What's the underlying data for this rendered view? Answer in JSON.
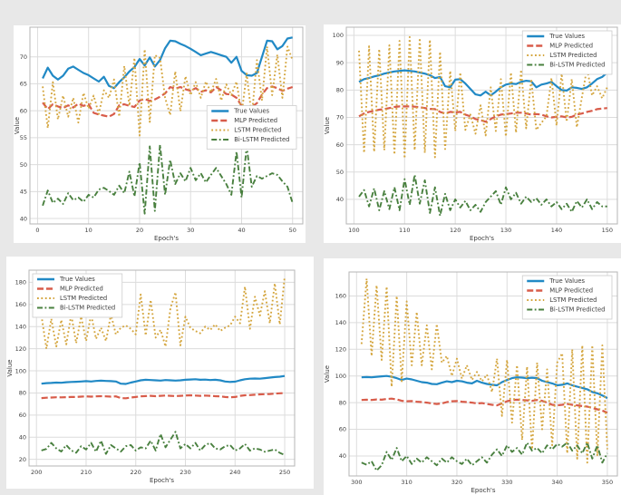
{
  "figure": {
    "background": "#e8e8e8",
    "description": "Comparison of true values and MLP, LSTM, Bi-LSTM predictions over four epoch windows"
  },
  "palette": {
    "true_values": "#2189c5",
    "mlp": "#d85c4a",
    "lstm": "#d4a53d",
    "bilstm": "#49803f",
    "grid": "#dcdcdc",
    "spine": "#b5b5b5",
    "tick_text": "#3c3c3c",
    "legend_bg": "#ffffff",
    "legend_border": "#cccccc",
    "plot_bg": "#ffffff"
  },
  "chart_data": [
    {
      "type": "line",
      "xlabel": "Epoch's",
      "ylabel": "Value",
      "grid": true,
      "legend_position": "center-right",
      "x_start": 1,
      "x_step": 1,
      "xlim": [
        -1.5,
        52
      ],
      "ylim": [
        39,
        75.5
      ],
      "xticks": [
        0,
        10,
        20,
        30,
        40,
        50
      ],
      "yticks": [
        40,
        45,
        50,
        55,
        60,
        65,
        70
      ],
      "series": [
        {
          "name": "True Values",
          "color_key": "true_values",
          "style": "solid",
          "values": [
            66,
            68,
            66.5,
            65.8,
            66.5,
            67.8,
            68.2,
            67.6,
            67,
            66.6,
            66,
            65.4,
            66.3,
            64.6,
            64.2,
            65.3,
            66.2,
            67.3,
            68.1,
            69.6,
            68.4,
            69.9,
            68.2,
            69.4,
            71.6,
            73,
            72.9,
            72.4,
            72,
            71.5,
            70.9,
            70.3,
            70.6,
            70.9,
            70.6,
            70.3,
            70,
            68.9,
            70,
            67.4,
            66.6,
            66.5,
            67,
            70,
            73,
            72.9,
            71.4,
            72,
            73.4,
            73.6
          ]
        },
        {
          "name": "MLP Predicted",
          "color_key": "mlp",
          "style": "dashed",
          "values": [
            61.5,
            60.3,
            61.2,
            60.8,
            60.5,
            61,
            60.6,
            61.3,
            60.9,
            61.2,
            59.6,
            59.3,
            59.1,
            58.9,
            59.4,
            61,
            61.2,
            60.9,
            60.7,
            61.9,
            62.2,
            61.8,
            62.1,
            62.6,
            63.2,
            64.4,
            64.1,
            64.4,
            64,
            63.7,
            64.2,
            63.5,
            63.8,
            63.4,
            64.4,
            63.8,
            63.1,
            63,
            62.4,
            60.9,
            60.4,
            60.7,
            61.4,
            63,
            64.2,
            64.5,
            64.2,
            63.7,
            64.1,
            64.4
          ]
        },
        {
          "name": "LSTM Predicted",
          "color_key": "lstm",
          "style": "dotted",
          "values": [
            64.5,
            56.8,
            65.3,
            58.4,
            62.8,
            58.9,
            62.4,
            57.8,
            63.3,
            60.4,
            62.8,
            59.4,
            63.8,
            62.4,
            65.8,
            58.9,
            68.3,
            60.9,
            69.8,
            55.4,
            71.4,
            57.9,
            70.3,
            69.8,
            62.4,
            59.2,
            67.3,
            59.9,
            66.4,
            62.9,
            65.3,
            62.4,
            65.4,
            63.4,
            65.9,
            61.9,
            64.9,
            62.9,
            65.4,
            59.4,
            66.9,
            58.9,
            69.4,
            61.9,
            71.9,
            62.9,
            70.4,
            62.4,
            71.9,
            69.4
          ]
        },
        {
          "name": "Bi-LSTM Predicted",
          "color_key": "bilstm",
          "style": "dashdot",
          "values": [
            42.4,
            45.2,
            42.9,
            43.7,
            42.7,
            44.7,
            43.4,
            43.9,
            43.1,
            44.4,
            43.9,
            45.4,
            45.7,
            45.1,
            44.4,
            46.1,
            44.7,
            48.7,
            44.1,
            50.4,
            40.9,
            53.4,
            41.4,
            53.7,
            44.4,
            50.9,
            46.4,
            48.4,
            46.9,
            49.4,
            47.1,
            48.4,
            46.7,
            48.1,
            49.4,
            47.9,
            46.4,
            44.4,
            52.4,
            43.9,
            53.4,
            45.9,
            47.9,
            47.4,
            47.9,
            48.4,
            48.1,
            46.9,
            45.9,
            42.9
          ]
        }
      ]
    },
    {
      "type": "line",
      "xlabel": "Epoch's",
      "ylabel": "Value",
      "grid": true,
      "legend_position": "top-right",
      "x_start": 101,
      "x_step": 1,
      "xlim": [
        98.5,
        152
      ],
      "ylim": [
        31,
        103
      ],
      "xticks": [
        100,
        110,
        120,
        130,
        140,
        150
      ],
      "yticks": [
        40,
        50,
        60,
        70,
        80,
        90,
        100
      ],
      "series": [
        {
          "name": "True Values",
          "color_key": "true_values",
          "style": "solid",
          "values": [
            83,
            84,
            84.4,
            85,
            85.4,
            86,
            86.4,
            86.8,
            87,
            87.2,
            87,
            86.8,
            86.4,
            86,
            85.4,
            84.4,
            84.8,
            81.4,
            81,
            83.8,
            84,
            82.4,
            80.4,
            78.4,
            78,
            79.4,
            78,
            79.4,
            81,
            82,
            82.4,
            82.2,
            83,
            83.4,
            83.2,
            81,
            82,
            82.4,
            83,
            81.4,
            80,
            79.8,
            81,
            80.8,
            80.4,
            81,
            82.4,
            84,
            84.8,
            86.4
          ]
        },
        {
          "name": "MLP Predicted",
          "color_key": "mlp",
          "style": "dashed",
          "values": [
            70.4,
            71.4,
            72,
            72.4,
            72.8,
            73,
            73.4,
            73.8,
            74,
            74,
            74,
            73.9,
            73.7,
            73.4,
            73.1,
            73,
            72,
            71.4,
            72,
            71.8,
            72,
            71,
            70.4,
            69.4,
            69,
            68.4,
            69.4,
            70.4,
            71,
            71.2,
            71.4,
            71.7,
            71.7,
            71.4,
            71,
            71.2,
            71,
            70.4,
            70,
            70.2,
            70.4,
            70,
            70.2,
            71,
            71.4,
            72,
            72.4,
            73,
            73.2,
            73.4
          ]
        },
        {
          "name": "LSTM Predicted",
          "color_key": "lstm",
          "style": "dotted",
          "values": [
            94.4,
            57,
            96,
            57.4,
            95,
            58,
            96.4,
            56.4,
            98,
            55,
            99.4,
            58,
            99,
            57,
            98.4,
            55.4,
            94,
            58.4,
            87,
            65,
            86.4,
            65.4,
            71,
            64,
            74.4,
            63.4,
            81,
            65,
            84,
            63,
            86.4,
            64.4,
            87.4,
            66,
            84,
            65.4,
            68,
            70.4,
            84.4,
            67,
            86,
            68.4,
            84,
            66.4,
            77.4,
            88,
            78,
            81.4,
            77,
            81
          ]
        },
        {
          "name": "Bi-LSTM Predicted",
          "color_key": "bilstm",
          "style": "dashdot",
          "values": [
            41,
            43.4,
            37.4,
            44,
            36,
            43,
            36.4,
            44.4,
            36,
            47.4,
            38,
            49,
            38.4,
            47,
            35,
            44.4,
            34,
            42,
            36,
            40,
            37,
            39.4,
            36,
            38,
            35.4,
            39,
            41,
            43,
            38,
            44.4,
            40,
            42.4,
            38.4,
            41,
            39,
            40.4,
            38,
            40,
            37.4,
            39,
            36.4,
            38.4,
            35.4,
            39.4,
            37,
            40,
            36.4,
            39,
            37.4,
            37.4
          ]
        }
      ]
    },
    {
      "type": "line",
      "xlabel": "Epoch's",
      "ylabel": "Value",
      "grid": true,
      "legend_position": "top-left",
      "x_start": 201,
      "x_step": 1,
      "xlim": [
        198.5,
        252
      ],
      "ylim": [
        14,
        191
      ],
      "xticks": [
        200,
        210,
        220,
        230,
        240,
        250
      ],
      "yticks": [
        20,
        40,
        60,
        80,
        100,
        120,
        140,
        160,
        180
      ],
      "series": [
        {
          "name": "True Values",
          "color_key": "true_values",
          "style": "solid",
          "values": [
            88.4,
            88.9,
            89.1,
            89.4,
            89.2,
            89.7,
            90,
            90.1,
            90.4,
            90.7,
            90.4,
            90.9,
            91.1,
            90.9,
            90.7,
            90.4,
            88.4,
            88.2,
            89.4,
            90.4,
            91.4,
            91.9,
            91.7,
            91.4,
            91.2,
            91.7,
            91.4,
            91.2,
            91.4,
            91.9,
            92.2,
            92.4,
            91.9,
            92.1,
            91.7,
            91.9,
            91.4,
            90.4,
            90,
            90.2,
            91.4,
            92.4,
            92.9,
            93.1,
            92.9,
            93.4,
            93.9,
            94.4,
            94.7,
            95.4
          ]
        },
        {
          "name": "MLP Predicted",
          "color_key": "mlp",
          "style": "dashed",
          "values": [
            75.4,
            75.7,
            75.9,
            76.1,
            76,
            76.2,
            76.4,
            76.4,
            76.7,
            76.9,
            76.7,
            76.9,
            77.1,
            76.9,
            76.7,
            76.9,
            75.4,
            75.2,
            75.9,
            76.4,
            76.9,
            77.2,
            77.4,
            77.1,
            77.4,
            77.7,
            77.4,
            77.2,
            77.4,
            77.7,
            77.9,
            77.7,
            77.4,
            77.7,
            77.4,
            77.1,
            76.9,
            76.4,
            76.1,
            76.4,
            77.4,
            77.9,
            78.1,
            78.4,
            78.7,
            78.9,
            79.1,
            79.4,
            79.7,
            79.9
          ]
        },
        {
          "name": "LSTM Predicted",
          "color_key": "lstm",
          "style": "dotted",
          "values": [
            150,
            120,
            147,
            122,
            146,
            124,
            151,
            125,
            149,
            127,
            151,
            129,
            139,
            127,
            151,
            133,
            139,
            141,
            138,
            133,
            169,
            132,
            164,
            130,
            137,
            122,
            157,
            171,
            123,
            149,
            139,
            136,
            134,
            140,
            137,
            142,
            136,
            139,
            141,
            149,
            143,
            176,
            138,
            167,
            150,
            172,
            143,
            179,
            142,
            185
          ]
        },
        {
          "name": "Bi-LSTM Predicted",
          "color_key": "bilstm",
          "style": "dashdot",
          "values": [
            28,
            29.4,
            34.9,
            29.9,
            27,
            32.9,
            28,
            26,
            31.9,
            28.9,
            34.9,
            26.9,
            36.9,
            24.9,
            32.9,
            29.9,
            27,
            31.9,
            32.9,
            27.9,
            30.9,
            29.9,
            36.9,
            27.9,
            42.9,
            30.9,
            37.9,
            44.9,
            29.9,
            33.9,
            29.9,
            34.9,
            27.9,
            32.9,
            34.9,
            29.9,
            28.9,
            31.9,
            32.9,
            27.9,
            29.9,
            33.9,
            27.9,
            29.9,
            28.9,
            26.9,
            27.9,
            28.9,
            25.9,
            23.9
          ]
        }
      ]
    },
    {
      "type": "line",
      "xlabel": "Epoch's",
      "ylabel": "Value",
      "grid": true,
      "legend_position": "top-right",
      "x_start": 301,
      "x_step": 1,
      "xlim": [
        298.5,
        352
      ],
      "ylim": [
        25,
        178
      ],
      "xticks": [
        300,
        310,
        320,
        330,
        340,
        350
      ],
      "yticks": [
        40,
        60,
        80,
        100,
        120,
        140,
        160
      ],
      "series": [
        {
          "name": "True Values",
          "color_key": "true_values",
          "style": "solid",
          "values": [
            99,
            99.2,
            99,
            99.4,
            99.7,
            100,
            99.4,
            98.4,
            97,
            98,
            97.4,
            96.4,
            95.4,
            95,
            94,
            93.8,
            95,
            96,
            95.4,
            96.4,
            96,
            95,
            94.4,
            96.4,
            95,
            94,
            93.4,
            93,
            95.4,
            97,
            98.4,
            99,
            98.8,
            98.4,
            98.7,
            98.4,
            96.4,
            95.4,
            94.4,
            93,
            93.4,
            94.4,
            93,
            92,
            91,
            90,
            88,
            87,
            85.4,
            83.4
          ]
        },
        {
          "name": "MLP Predicted",
          "color_key": "mlp",
          "style": "dashed",
          "values": [
            82,
            82.2,
            82,
            82.4,
            82.2,
            82.7,
            83,
            82.4,
            81.4,
            81,
            81.2,
            80.7,
            80.4,
            80,
            79.4,
            79,
            79.4,
            80.4,
            81,
            81.2,
            80.7,
            80.4,
            80,
            79.4,
            79.7,
            79,
            78.4,
            78,
            79.4,
            81,
            82,
            82.2,
            82,
            81.7,
            81.4,
            82,
            81.4,
            80,
            78.4,
            78,
            78.4,
            79,
            78.4,
            78,
            77.4,
            77,
            76,
            75,
            74,
            72.4
          ]
        },
        {
          "name": "LSTM Predicted",
          "color_key": "lstm",
          "style": "dotted",
          "values": [
            124,
            173,
            115,
            168,
            112,
            167,
            92,
            160,
            96,
            156,
            108,
            148,
            108,
            138,
            105,
            139,
            110,
            115,
            100,
            113,
            98,
            108,
            97,
            103,
            96,
            101,
            88,
            113,
            70,
            112,
            65,
            108,
            52,
            107,
            45,
            110,
            60,
            105,
            48,
            110,
            117,
            42,
            120,
            38,
            123,
            35,
            123,
            40,
            123,
            45
          ]
        },
        {
          "name": "Bi-LSTM Predicted",
          "color_key": "bilstm",
          "style": "dashdot",
          "values": [
            35,
            33.4,
            36,
            29,
            33,
            43,
            37,
            46,
            36,
            40,
            34,
            38,
            35,
            39,
            36,
            33,
            38,
            35,
            39,
            36,
            34,
            38,
            33,
            36,
            39,
            35,
            41,
            45,
            40,
            48,
            43,
            46,
            41,
            50,
            44,
            46,
            42,
            48,
            45,
            49,
            47,
            50,
            44,
            48,
            42,
            50,
            38,
            48,
            35,
            42
          ]
        }
      ]
    }
  ]
}
